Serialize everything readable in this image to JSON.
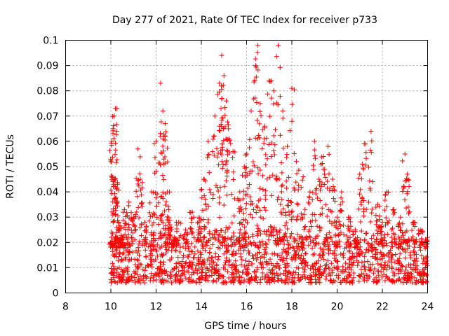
{
  "chart_data": {
    "type": "scatter",
    "title": "Day 277 of 2021, Rate Of TEC Index for receiver p733",
    "xlabel": "GPS time / hours",
    "ylabel": "ROTI / TECUs",
    "xlim": [
      8,
      24
    ],
    "ylim": [
      0,
      0.1
    ],
    "x_ticks": [
      8,
      10,
      12,
      14,
      16,
      18,
      20,
      22,
      24
    ],
    "x_tick_labels": [
      "8",
      "10",
      "12",
      "14",
      "16",
      "18",
      "20",
      "22",
      "24"
    ],
    "y_ticks": [
      0,
      0.01,
      0.02,
      0.03,
      0.04,
      0.05,
      0.06,
      0.07,
      0.08,
      0.09,
      0.1
    ],
    "y_tick_labels": [
      "0",
      "0.01",
      "0.02",
      "0.03",
      "0.04",
      "0.05",
      "0.06",
      "0.07",
      "0.08",
      "0.09",
      "0.1"
    ],
    "grid": true,
    "marker": "+",
    "color": "#ff0000",
    "series": [
      {
        "name": "ROTI",
        "x": [
          10.0,
          10.05,
          10.1,
          10.15,
          10.2,
          10.25,
          10.3,
          10.35,
          10.45,
          10.6,
          10.8,
          11.0,
          11.2,
          11.3,
          11.5,
          11.8,
          12.0,
          12.2,
          12.3,
          12.4,
          12.5,
          12.6,
          12.8,
          13.0,
          13.3,
          13.6,
          13.9,
          14.1,
          14.3,
          14.6,
          14.8,
          14.9,
          15.0,
          15.1,
          15.2,
          15.4,
          15.7,
          15.9,
          16.0,
          16.2,
          16.4,
          16.5,
          16.6,
          16.8,
          17.0,
          17.2,
          17.4,
          17.6,
          17.8,
          18.0,
          18.2,
          18.5,
          18.8,
          19.0,
          19.2,
          19.4,
          19.6,
          19.8,
          20.0,
          20.2,
          20.5,
          20.8,
          21.0,
          21.2,
          21.5,
          21.8,
          22.0,
          22.2,
          22.5,
          22.8,
          23.0,
          23.1,
          23.4,
          23.7,
          24.0
        ],
        "y": [
          0.02,
          0.06,
          0.065,
          0.07,
          0.073,
          0.064,
          0.043,
          0.028,
          0.022,
          0.033,
          0.036,
          0.03,
          0.057,
          0.045,
          0.028,
          0.04,
          0.06,
          0.083,
          0.072,
          0.067,
          0.04,
          0.027,
          0.022,
          0.028,
          0.025,
          0.032,
          0.03,
          0.045,
          0.06,
          0.07,
          0.083,
          0.094,
          0.086,
          0.076,
          0.065,
          0.056,
          0.04,
          0.05,
          0.055,
          0.072,
          0.09,
          0.098,
          0.075,
          0.066,
          0.084,
          0.08,
          0.098,
          0.072,
          0.058,
          0.081,
          0.052,
          0.046,
          0.04,
          0.06,
          0.045,
          0.054,
          0.058,
          0.045,
          0.03,
          0.04,
          0.03,
          0.025,
          0.047,
          0.059,
          0.064,
          0.035,
          0.028,
          0.04,
          0.033,
          0.03,
          0.055,
          0.047,
          0.028,
          0.025,
          0.022
        ],
        "band_x": [
          10.0,
          10.5,
          11.0,
          11.5,
          12.0,
          12.5,
          13.0,
          13.5,
          14.0,
          14.5,
          15.0,
          15.5,
          16.0,
          16.5,
          17.0,
          17.5,
          18.0,
          18.5,
          19.0,
          19.5,
          20.0,
          20.5,
          21.0,
          21.5,
          22.0,
          22.5,
          23.0,
          23.5,
          24.0
        ],
        "band_upper": [
          0.024,
          0.022,
          0.022,
          0.021,
          0.025,
          0.024,
          0.02,
          0.021,
          0.024,
          0.025,
          0.027,
          0.025,
          0.023,
          0.025,
          0.026,
          0.025,
          0.024,
          0.023,
          0.022,
          0.022,
          0.021,
          0.02,
          0.021,
          0.022,
          0.022,
          0.021,
          0.022,
          0.021,
          0.022
        ],
        "band_lower": [
          0.004,
          0.004,
          0.004,
          0.004,
          0.004,
          0.004,
          0.004,
          0.004,
          0.004,
          0.004,
          0.004,
          0.004,
          0.004,
          0.004,
          0.004,
          0.004,
          0.004,
          0.004,
          0.004,
          0.004,
          0.004,
          0.004,
          0.004,
          0.004,
          0.004,
          0.004,
          0.004,
          0.004,
          0.004
        ]
      }
    ]
  }
}
